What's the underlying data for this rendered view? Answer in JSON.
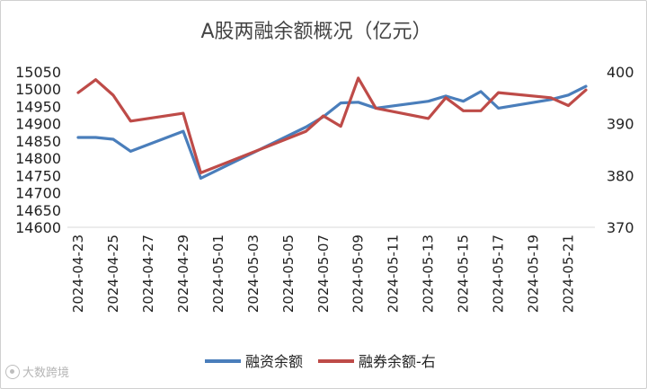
{
  "chart_data": {
    "type": "line",
    "title": "A股两融余额概况（亿元）",
    "x": [
      "2024-04-23",
      "2024-04-24",
      "2024-04-25",
      "2024-04-26",
      "2024-04-29",
      "2024-04-30",
      "2024-05-06",
      "2024-05-07",
      "2024-05-08",
      "2024-05-09",
      "2024-05-10",
      "2024-05-13",
      "2024-05-14",
      "2024-05-15",
      "2024-05-16",
      "2024-05-17",
      "2024-05-20",
      "2024-05-21",
      "2024-05-22"
    ],
    "x_tick_labels": [
      "2024-04-23",
      "2024-04-25",
      "2024-04-27",
      "2024-04-29",
      "2024-05-01",
      "2024-05-03",
      "2024-05-05",
      "2024-05-07",
      "2024-05-09",
      "2024-05-11",
      "2024-05-13",
      "2024-05-15",
      "2024-05-17",
      "2024-05-19",
      "2024-05-21"
    ],
    "y_left": {
      "ylim": [
        14600,
        15050
      ],
      "ticks": [
        14600,
        14650,
        14700,
        14750,
        14800,
        14850,
        14900,
        14950,
        15000,
        15050
      ]
    },
    "y_right": {
      "ylim": [
        370,
        400
      ],
      "ticks": [
        370,
        380,
        390,
        400
      ]
    },
    "series": [
      {
        "name": "融资余额",
        "axis": "left",
        "color": "#4a7ebb",
        "points": [
          [
            "2024-04-23",
            14860
          ],
          [
            "2024-04-24",
            14860
          ],
          [
            "2024-04-25",
            14855
          ],
          [
            "2024-04-26",
            14820
          ],
          [
            "2024-04-29",
            14878
          ],
          [
            "2024-04-30",
            14742
          ],
          [
            "2024-05-06",
            14890
          ],
          [
            "2024-05-07",
            14920
          ],
          [
            "2024-05-08",
            14960
          ],
          [
            "2024-05-09",
            14962
          ],
          [
            "2024-05-10",
            14945
          ],
          [
            "2024-05-13",
            14965
          ],
          [
            "2024-05-14",
            14980
          ],
          [
            "2024-05-15",
            14965
          ],
          [
            "2024-05-16",
            14993
          ],
          [
            "2024-05-17",
            14945
          ],
          [
            "2024-05-20",
            14970
          ],
          [
            "2024-05-21",
            14983
          ],
          [
            "2024-05-22",
            15008
          ]
        ]
      },
      {
        "name": "融券余额-右",
        "axis": "right",
        "color": "#be4b48",
        "points": [
          [
            "2024-04-23",
            396
          ],
          [
            "2024-04-24",
            398.5
          ],
          [
            "2024-04-25",
            395.5
          ],
          [
            "2024-04-26",
            390.5
          ],
          [
            "2024-04-29",
            392
          ],
          [
            "2024-04-30",
            380.5
          ],
          [
            "2024-05-06",
            388.5
          ],
          [
            "2024-05-07",
            391.5
          ],
          [
            "2024-05-08",
            389.5
          ],
          [
            "2024-05-09",
            398.8
          ],
          [
            "2024-05-10",
            393
          ],
          [
            "2024-05-13",
            391
          ],
          [
            "2024-05-14",
            395
          ],
          [
            "2024-05-15",
            392.5
          ],
          [
            "2024-05-16",
            392.5
          ],
          [
            "2024-05-17",
            396
          ],
          [
            "2024-05-20",
            395
          ],
          [
            "2024-05-21",
            393.5
          ],
          [
            "2024-05-22",
            396.5
          ]
        ]
      }
    ],
    "legend_position": "bottom",
    "grid": false
  },
  "watermark": {
    "text": "大数跨境"
  }
}
